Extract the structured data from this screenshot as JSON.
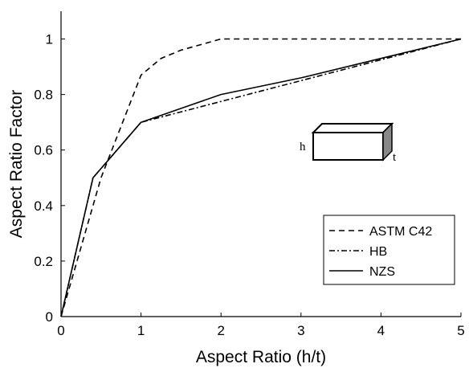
{
  "chart_data": {
    "type": "line",
    "xlabel": "Aspect Ratio (h/t)",
    "ylabel": "Aspect Ratio Factor",
    "xlim": [
      0,
      5
    ],
    "ylim": [
      0,
      1.1
    ],
    "x_ticks": [
      0,
      1,
      2,
      3,
      4,
      5
    ],
    "y_ticks": [
      0,
      0.2,
      0.4,
      0.6,
      0.8,
      1
    ],
    "x_tick_labels": [
      "0",
      "1",
      "2",
      "3",
      "4",
      "5"
    ],
    "y_tick_labels": [
      "0",
      "0.2",
      "0.4",
      "0.6",
      "0.8",
      "1"
    ],
    "grid": false,
    "legend_position": "bottom-right",
    "series": [
      {
        "name": "ASTM C42",
        "style": "dashed",
        "x": [
          0,
          0.5,
          1,
          1.25,
          1.5,
          2,
          5
        ],
        "y": [
          0,
          0.5,
          0.87,
          0.93,
          0.96,
          1,
          1
        ]
      },
      {
        "name": "HB",
        "style": "dashdot",
        "x": [
          0,
          0.4,
          1,
          5
        ],
        "y": [
          0,
          0.5,
          0.7,
          1
        ]
      },
      {
        "name": "NZS",
        "style": "solid",
        "x": [
          0,
          0.4,
          1,
          2,
          3,
          4,
          5
        ],
        "y": [
          0,
          0.5,
          0.7,
          0.8,
          0.86,
          0.93,
          1
        ]
      }
    ],
    "inset": {
      "height_label": "h",
      "thickness_label": "t"
    }
  },
  "colors": {
    "line": "#000000",
    "inset_side": "#888888"
  }
}
